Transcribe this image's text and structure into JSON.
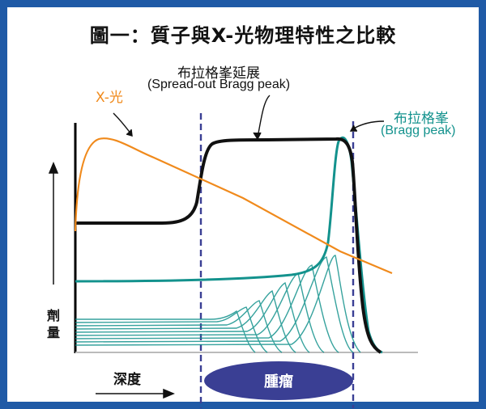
{
  "title": "圖一：質子與X-光物理特性之比較",
  "labels": {
    "sobp_title": "布拉格峯延展",
    "sobp_subtitle": "(Spread-out Bragg peak)",
    "xray": "X-光",
    "bragg_title": "布拉格峯",
    "bragg_subtitle": "(Bragg peak)",
    "dose_axis": "劑量",
    "depth_axis": "深度",
    "tumor": "腫瘤"
  },
  "colors": {
    "frame": "#1f5aa6",
    "xray_curve": "#f08a1c",
    "bragg_curve": "#13928d",
    "sobp_curve": "#111111",
    "tumor_ellipse": "#3a3f94",
    "guide_lines": "#3a3f94"
  }
}
